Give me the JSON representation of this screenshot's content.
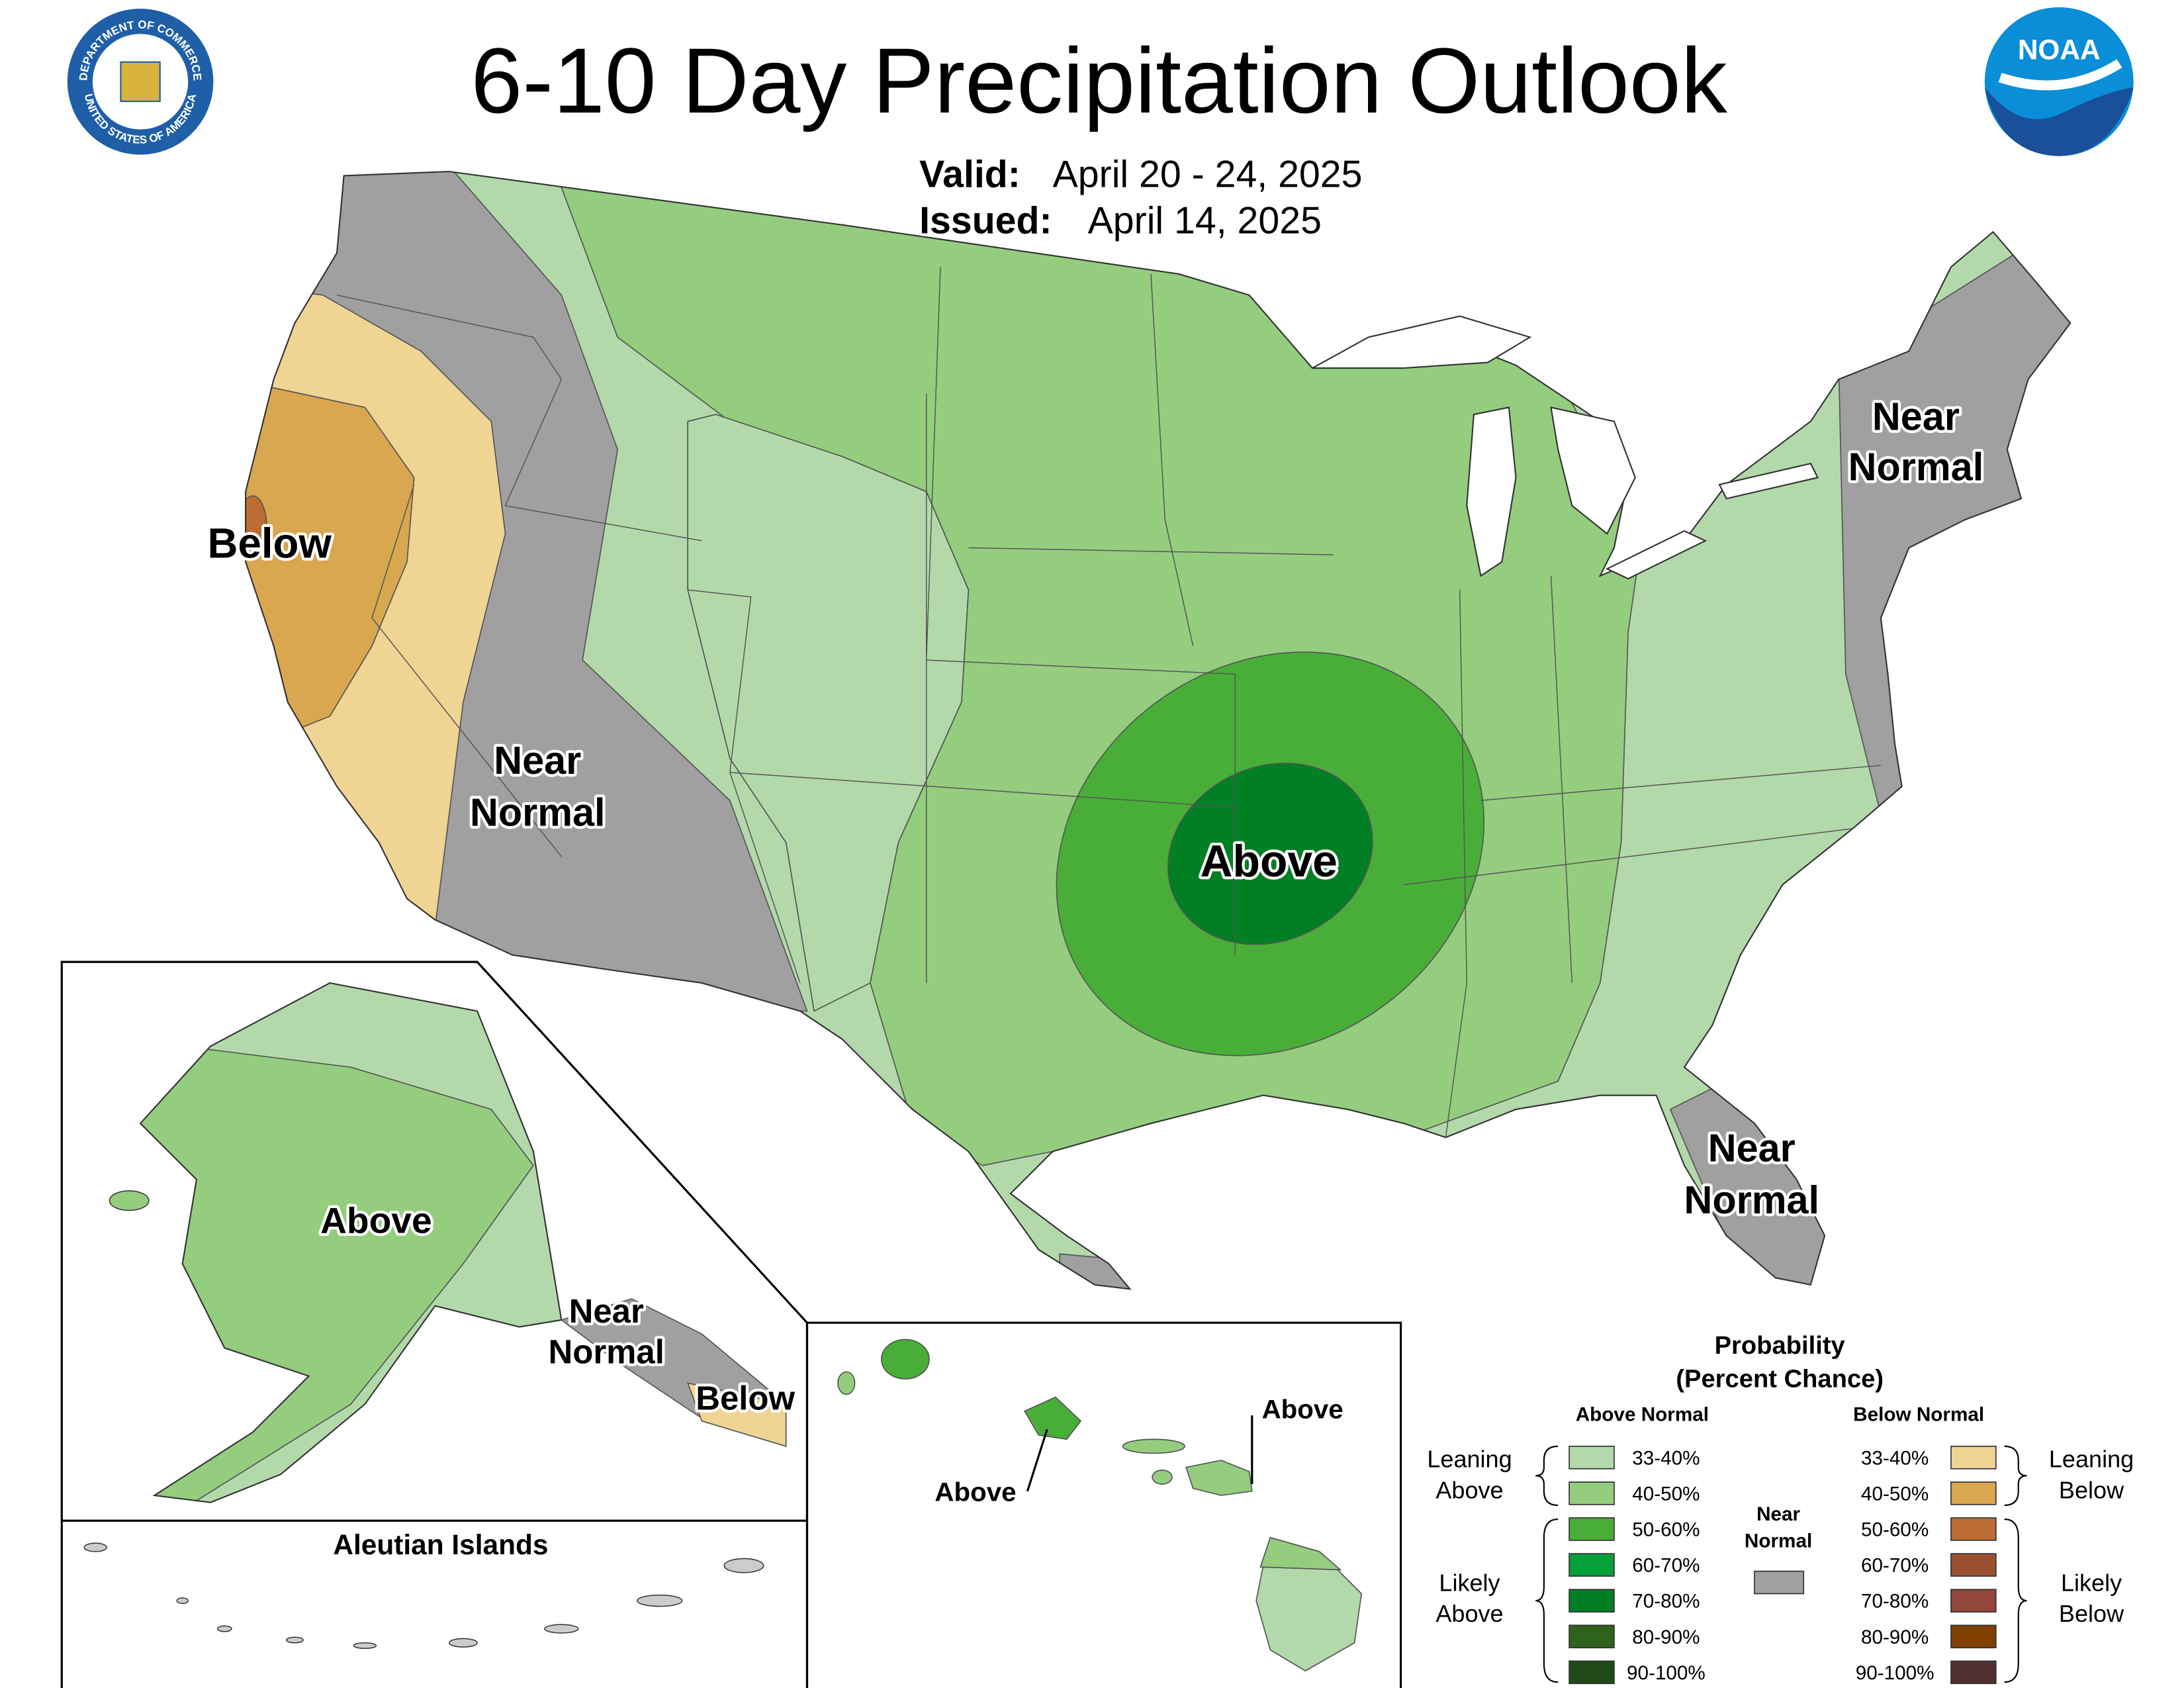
{
  "header": {
    "title": "6-10 Day Precipitation Outlook",
    "valid_label": "Valid:",
    "valid": "April 20 - 24, 2025",
    "issued_label": "Issued:",
    "issued": "April 14, 2025"
  },
  "logos": {
    "noaa": "NOAA",
    "seal_top": "DEPARTMENT OF COMMERCE",
    "seal_bottom": "UNITED STATES OF AMERICA"
  },
  "map_labels": {
    "west_coast": [
      "Below"
    ],
    "west_interior": [
      "Near",
      "Normal"
    ],
    "central": [
      "Above"
    ],
    "northeast": [
      "Near",
      "Normal"
    ],
    "florida": [
      "Near",
      "Normal"
    ]
  },
  "alaska": {
    "mainland": [
      "Above"
    ],
    "panhandle_north": [
      "Near",
      "Normal"
    ],
    "panhandle_south": [
      "Below"
    ],
    "aleutian_title": "Aleutian Islands"
  },
  "hawaii": {
    "oahu": [
      "Above"
    ],
    "maui": [
      "Above"
    ]
  },
  "legend": {
    "title": [
      "Probability",
      "(Percent Chance)"
    ],
    "above_heading": "Above Normal",
    "below_heading": "Below Normal",
    "above": [
      {
        "label": "33-40%",
        "color": "#b3d9ab"
      },
      {
        "label": "40-50%",
        "color": "#94cd7e"
      },
      {
        "label": "50-60%",
        "color": "#48ae38"
      },
      {
        "label": "60-70%",
        "color": "#06a03a"
      },
      {
        "label": "70-80%",
        "color": "#007f24"
      },
      {
        "label": "80-90%",
        "color": "#2f631c"
      },
      {
        "label": "90-100%",
        "color": "#1f4a18"
      }
    ],
    "below": [
      {
        "label": "33-40%",
        "color": "#f0d493"
      },
      {
        "label": "40-50%",
        "color": "#d8a74f"
      },
      {
        "label": "50-60%",
        "color": "#bb6d33"
      },
      {
        "label": "60-70%",
        "color": "#9b5031"
      },
      {
        "label": "70-80%",
        "color": "#934639"
      },
      {
        "label": "80-90%",
        "color": "#804000"
      },
      {
        "label": "90-100%",
        "color": "#4f2f2f"
      }
    ],
    "near": {
      "lines": [
        "Near",
        "Normal"
      ],
      "color": "#a0a0a0"
    },
    "leaning_above": [
      "Leaning",
      "Above"
    ],
    "likely_above": [
      "Likely",
      "Above"
    ],
    "leaning_below": [
      "Leaning",
      "Below"
    ],
    "likely_below": [
      "Likely",
      "Below"
    ]
  }
}
